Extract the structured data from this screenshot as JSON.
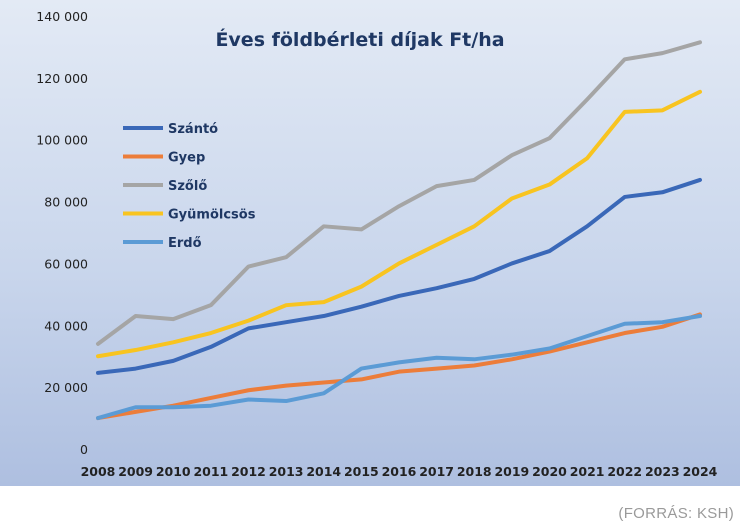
{
  "source": "(FORRÁS: KSH)",
  "chart_data": {
    "type": "line",
    "title": "Éves földbérleti díjak Ft/ha",
    "xlabel": "",
    "ylabel": "",
    "ylim": [
      0,
      140000
    ],
    "yticks": [
      "0",
      "20 000",
      "40 000",
      "60 000",
      "80 000",
      "100 000",
      "120 000",
      "140 000"
    ],
    "grid": false,
    "legend": "left",
    "x": [
      "2008",
      "2009",
      "2010",
      "2011",
      "2012",
      "2013",
      "2014",
      "2015",
      "2016",
      "2017",
      "2018",
      "2019",
      "2020",
      "2021",
      "2022",
      "2023",
      "2024"
    ],
    "series": [
      {
        "name": "Szántó",
        "color": "#3a68b8",
        "values": [
          24600,
          26000,
          28500,
          33000,
          39000,
          41000,
          43000,
          46000,
          49500,
          52000,
          55000,
          60000,
          64000,
          72000,
          81500,
          83000,
          87000
        ]
      },
      {
        "name": "Gyep",
        "color": "#ec7d3a",
        "values": [
          10000,
          12000,
          14000,
          16500,
          19000,
          20500,
          21500,
          22500,
          25000,
          26000,
          27000,
          29000,
          31500,
          34500,
          37500,
          39500,
          43500
        ]
      },
      {
        "name": "Szőlő",
        "color": "#a5a5a5",
        "values": [
          34000,
          43000,
          42000,
          46500,
          59000,
          62000,
          72000,
          71000,
          78500,
          85000,
          87000,
          95000,
          100500,
          113000,
          126000,
          128000,
          131500
        ]
      },
      {
        "name": "Gyümölcsös",
        "color": "#f8c420",
        "values": [
          30000,
          32000,
          34500,
          37500,
          41500,
          46500,
          47500,
          52500,
          60000,
          66000,
          72000,
          81000,
          85500,
          94000,
          109000,
          109500,
          115500
        ]
      },
      {
        "name": "Erdő",
        "color": "#5b9bd5",
        "values": [
          10000,
          13500,
          13500,
          14000,
          16000,
          15500,
          18000,
          26000,
          28000,
          29500,
          29000,
          30500,
          32500,
          36500,
          40500,
          41000,
          43000
        ]
      }
    ]
  }
}
